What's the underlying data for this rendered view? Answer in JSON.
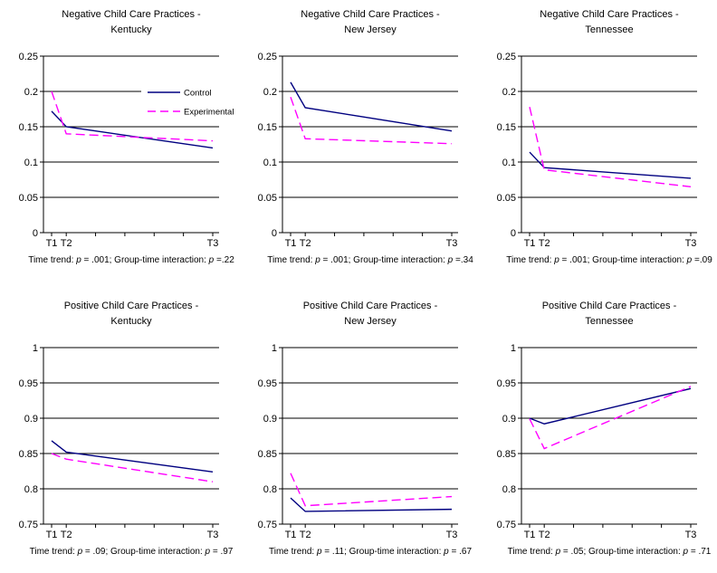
{
  "colors": {
    "control": "#000080",
    "experimental": "#ff00ff",
    "axis": "#000000",
    "background": "#ffffff"
  },
  "legend": {
    "position": "upper-right-inside-first-chart",
    "entries": [
      {
        "label": "Control",
        "key": "control",
        "style": "solid"
      },
      {
        "label": "Experimental",
        "key": "experimental",
        "style": "dashed"
      }
    ]
  },
  "x_axis": {
    "domain": [
      0,
      11
    ],
    "tick_positions": [
      0,
      1,
      3,
      5,
      7,
      9,
      11
    ],
    "labels": [
      "T1",
      "T2",
      "T3"
    ],
    "label_positions": [
      0,
      1,
      11
    ]
  },
  "chart_data": [
    {
      "type": "line",
      "title": [
        "Negative Child Care Practices -",
        "Kentucky"
      ],
      "xlabel": "",
      "ylabel": "",
      "grid": true,
      "ylim": [
        0,
        0.25
      ],
      "yticks": [
        0,
        0.05,
        0.1,
        0.15,
        0.2,
        0.25
      ],
      "ytick_labels": [
        "0",
        "0.05",
        "0.1",
        "0.15",
        "0.2",
        "0.25"
      ],
      "x": [
        0,
        1,
        11
      ],
      "x_labels": [
        "T1",
        "T2",
        "T3"
      ],
      "show_legend": true,
      "series": [
        {
          "name": "Control",
          "key": "control",
          "style": "solid",
          "values": [
            0.172,
            0.15,
            0.12
          ]
        },
        {
          "name": "Experimental",
          "key": "experimental",
          "style": "dashed",
          "values": [
            0.2,
            0.14,
            0.13
          ]
        }
      ],
      "time_trend_p": ".001",
      "interaction_p": ".22",
      "caption_segments": [
        {
          "t": "Time trend: "
        },
        {
          "t": "p",
          "i": true
        },
        {
          "t": " = .001; Group-time interaction: "
        },
        {
          "t": "p",
          "i": true
        },
        {
          "t": " =.22"
        }
      ]
    },
    {
      "type": "line",
      "title": [
        "Negative Child Care Practices -",
        "New Jersey"
      ],
      "xlabel": "",
      "ylabel": "",
      "grid": true,
      "ylim": [
        0,
        0.25
      ],
      "yticks": [
        0,
        0.05,
        0.1,
        0.15,
        0.2,
        0.25
      ],
      "ytick_labels": [
        "0",
        "0.05",
        "0.1",
        "0.15",
        "0.2",
        "0.25"
      ],
      "x": [
        0,
        1,
        11
      ],
      "x_labels": [
        "T1",
        "T2",
        "T3"
      ],
      "show_legend": false,
      "series": [
        {
          "name": "Control",
          "key": "control",
          "style": "solid",
          "values": [
            0.213,
            0.177,
            0.144
          ]
        },
        {
          "name": "Experimental",
          "key": "experimental",
          "style": "dashed",
          "values": [
            0.192,
            0.133,
            0.126
          ]
        }
      ],
      "time_trend_p": ".001",
      "interaction_p": ".34",
      "caption_segments": [
        {
          "t": "Time trend: "
        },
        {
          "t": "p",
          "i": true
        },
        {
          "t": " = .001; Group-time interaction: "
        },
        {
          "t": "p",
          "i": true
        },
        {
          "t": " =.34"
        }
      ]
    },
    {
      "type": "line",
      "title": [
        "Negative Child Care Practices -",
        "Tennessee"
      ],
      "xlabel": "",
      "ylabel": "",
      "grid": true,
      "ylim": [
        0,
        0.25
      ],
      "yticks": [
        0,
        0.05,
        0.1,
        0.15,
        0.2,
        0.25
      ],
      "ytick_labels": [
        "0",
        "0.05",
        "0.1",
        "0.15",
        "0.2",
        "0.25"
      ],
      "x": [
        0,
        1,
        11
      ],
      "x_labels": [
        "T1",
        "T2",
        "T3"
      ],
      "show_legend": false,
      "series": [
        {
          "name": "Control",
          "key": "control",
          "style": "solid",
          "values": [
            0.114,
            0.092,
            0.077
          ]
        },
        {
          "name": "Experimental",
          "key": "experimental",
          "style": "dashed",
          "values": [
            0.178,
            0.089,
            0.065
          ]
        }
      ],
      "time_trend_p": ".001",
      "interaction_p": ".09",
      "caption_segments": [
        {
          "t": "Time trend: "
        },
        {
          "t": "p",
          "i": true
        },
        {
          "t": " = .001; Group-time interaction: "
        },
        {
          "t": "p",
          "i": true
        },
        {
          "t": " =.09"
        }
      ]
    },
    {
      "type": "line",
      "title": [
        "Positive Child Care Practices -",
        "Kentucky"
      ],
      "xlabel": "",
      "ylabel": "",
      "grid": true,
      "ylim": [
        0.75,
        1
      ],
      "yticks": [
        0.75,
        0.8,
        0.85,
        0.9,
        0.95,
        1
      ],
      "ytick_labels": [
        "0.75",
        "0.8",
        "0.85",
        "0.9",
        "0.95",
        "1"
      ],
      "x": [
        0,
        1,
        11
      ],
      "x_labels": [
        "T1",
        "T2",
        "T3"
      ],
      "show_legend": false,
      "series": [
        {
          "name": "Control",
          "key": "control",
          "style": "solid",
          "values": [
            0.868,
            0.852,
            0.824
          ]
        },
        {
          "name": "Experimental",
          "key": "experimental",
          "style": "dashed",
          "values": [
            0.85,
            0.842,
            0.81
          ]
        }
      ],
      "time_trend_p": ".09",
      "interaction_p": ".97",
      "caption_segments": [
        {
          "t": "Time trend: "
        },
        {
          "t": "p",
          "i": true
        },
        {
          "t": " = .09; Group-time interaction: "
        },
        {
          "t": "p",
          "i": true
        },
        {
          "t": " = .97"
        }
      ]
    },
    {
      "type": "line",
      "title": [
        "Positive Child Care Practices -",
        "New Jersey"
      ],
      "xlabel": "",
      "ylabel": "",
      "grid": true,
      "ylim": [
        0.75,
        1
      ],
      "yticks": [
        0.75,
        0.8,
        0.85,
        0.9,
        0.95,
        1
      ],
      "ytick_labels": [
        "0.75",
        "0.8",
        "0.85",
        "0.9",
        "0.95",
        "1"
      ],
      "x": [
        0,
        1,
        11
      ],
      "x_labels": [
        "T1",
        "T2",
        "T3"
      ],
      "show_legend": false,
      "series": [
        {
          "name": "Control",
          "key": "control",
          "style": "solid",
          "values": [
            0.787,
            0.768,
            0.771
          ]
        },
        {
          "name": "Experimental",
          "key": "experimental",
          "style": "dashed",
          "values": [
            0.822,
            0.776,
            0.789
          ]
        }
      ],
      "time_trend_p": ".11",
      "interaction_p": ".67",
      "caption_segments": [
        {
          "t": "Time trend: "
        },
        {
          "t": "p",
          "i": true
        },
        {
          "t": " = .11; Group-time interaction: "
        },
        {
          "t": "p",
          "i": true
        },
        {
          "t": " = .67"
        }
      ]
    },
    {
      "type": "line",
      "title": [
        "Positive Child Care Practices -",
        "Tennessee"
      ],
      "xlabel": "",
      "ylabel": "",
      "grid": true,
      "ylim": [
        0.75,
        1
      ],
      "yticks": [
        0.75,
        0.8,
        0.85,
        0.9,
        0.95,
        1
      ],
      "ytick_labels": [
        "0.75",
        "0.8",
        "0.85",
        "0.9",
        "0.95",
        "1"
      ],
      "x": [
        0,
        1,
        11
      ],
      "x_labels": [
        "T1",
        "T2",
        "T3"
      ],
      "show_legend": false,
      "series": [
        {
          "name": "Control",
          "key": "control",
          "style": "solid",
          "values": [
            0.9,
            0.892,
            0.942
          ]
        },
        {
          "name": "Experimental",
          "key": "experimental",
          "style": "dashed",
          "values": [
            0.899,
            0.857,
            0.945
          ]
        }
      ],
      "time_trend_p": ".05",
      "interaction_p": ".71",
      "caption_segments": [
        {
          "t": "Time trend: "
        },
        {
          "t": "p",
          "i": true
        },
        {
          "t": " = .05; Group-time interaction: "
        },
        {
          "t": "p",
          "i": true
        },
        {
          "t": " = .71"
        }
      ]
    }
  ]
}
